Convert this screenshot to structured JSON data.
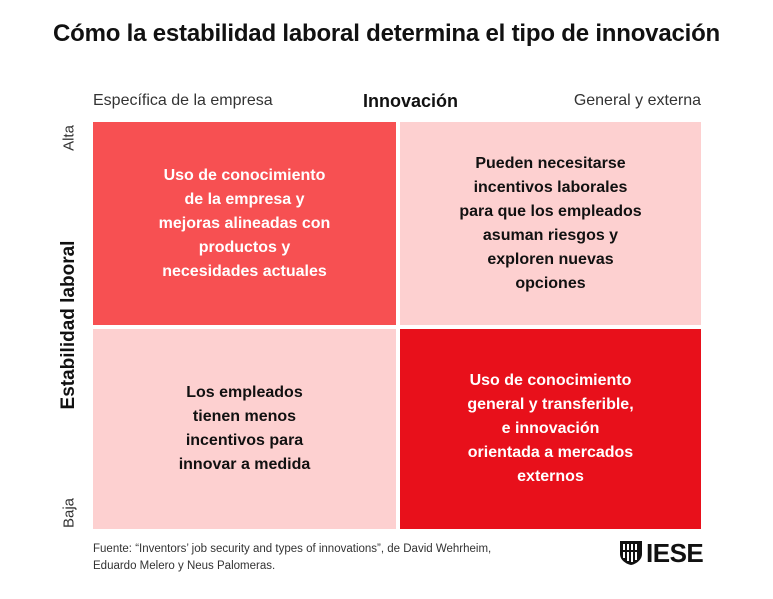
{
  "title": "Cómo la estabilidad laboral determina el tipo de innovación",
  "x_axis": {
    "left_label": "Específica de la empresa",
    "title": "Innovación",
    "right_label": "General y externa"
  },
  "y_axis": {
    "top_label": "Alta",
    "title": "Estabilidad laboral",
    "bottom_label": "Baja"
  },
  "quadrants": {
    "top_left": {
      "text": "Uso de conocimiento\nde la empresa y\nmejoras alineadas con\nproductos y\nnecesidades actuales",
      "color": "#f75052"
    },
    "top_right": {
      "text": "Pueden necesitarse\nincentivos laborales\npara que los empleados\nasuman riesgos y\nexploren nuevas\nopciones",
      "color": "#fdd0d0"
    },
    "bottom_left": {
      "text": "Los empleados\ntienen menos\nincentivos para\ninnovar a medida",
      "color": "#fdd0d0"
    },
    "bottom_right": {
      "text": "Uso de conocimiento\ngeneral y transferible,\ne innovación\norientada a mercados\nexternos",
      "color": "#e8101b"
    }
  },
  "source": "Fuente: “Inventors’ job security and types of innovations”, de David Wehrheim,\nEduardo Melero y Neus Palomeras.",
  "logo": {
    "icon": "iese-shield-icon",
    "text": "IESE"
  }
}
